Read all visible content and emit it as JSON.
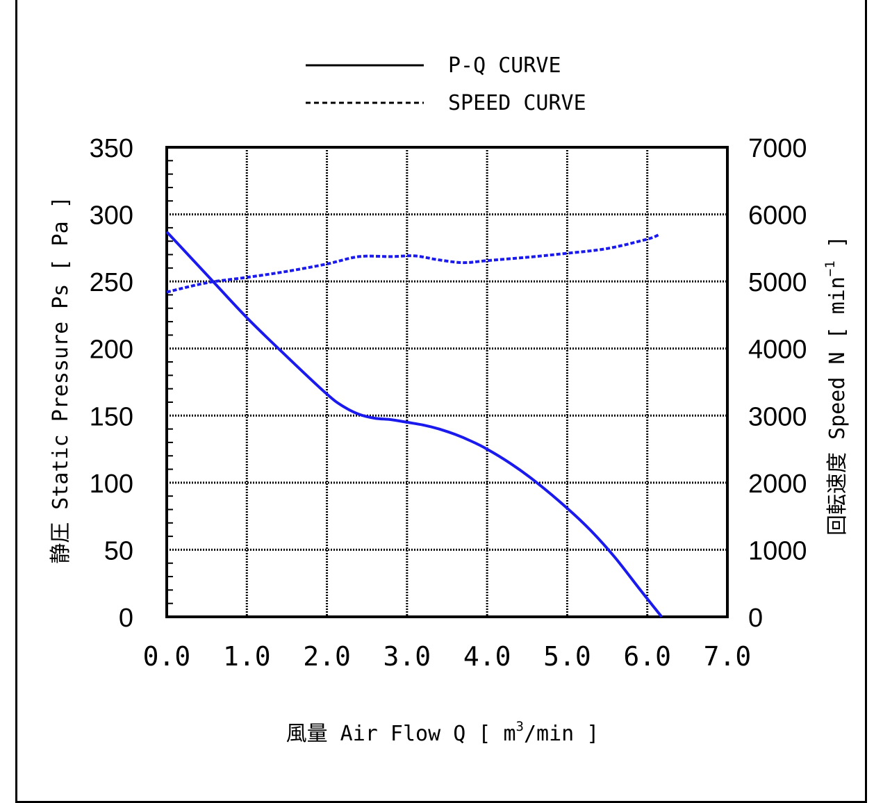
{
  "chart_data": {
    "type": "line",
    "title": "",
    "xlabel": "風量 Air Flow Q [ m³/min ]",
    "xlabel_parts": {
      "before": "風量 Air Flow Q [ m",
      "sup": "3",
      "after": "/min ]"
    },
    "ylabel": "静圧 Static Pressure Ps [ Pa ]",
    "y2label": "回転速度 Speed N [ min⁻¹ ]",
    "y2label_parts": {
      "before": "回転速度 Speed N [ min",
      "sup": "−1",
      "after": " ]"
    },
    "xlim": [
      0,
      7.0
    ],
    "ylim": [
      0,
      350
    ],
    "y2lim": [
      0,
      7000
    ],
    "x_ticks": [
      "0.0",
      "1.0",
      "2.0",
      "3.0",
      "4.0",
      "5.0",
      "6.0",
      "7.0"
    ],
    "y_ticks": [
      "0",
      "50",
      "100",
      "150",
      "200",
      "250",
      "300",
      "350"
    ],
    "y2_ticks": [
      "0",
      "1000",
      "2000",
      "3000",
      "4000",
      "5000",
      "6000",
      "7000"
    ],
    "grid": true,
    "legend_position": "top-center",
    "series": [
      {
        "name": "P-Q CURVE",
        "axis": "left",
        "style": "solid",
        "color": "#1a1aee",
        "x": [
          0.0,
          0.5,
          1.0,
          1.5,
          2.0,
          2.2,
          2.4,
          2.6,
          2.8,
          3.0,
          3.2,
          3.4,
          3.6,
          3.8,
          4.0,
          4.3,
          4.6,
          5.0,
          5.3,
          5.6,
          5.9,
          6.1,
          6.18
        ],
        "y": [
          287,
          255,
          223,
          194,
          166,
          157,
          151,
          148,
          147,
          145,
          143,
          140,
          136,
          131,
          125,
          114,
          101,
          81,
          64,
          44,
          21,
          6,
          0
        ]
      },
      {
        "name": "SPEED CURVE",
        "axis": "right",
        "style": "dashed",
        "color": "#1a1aee",
        "x": [
          0.0,
          0.5,
          1.0,
          1.5,
          2.0,
          2.4,
          2.8,
          3.1,
          3.4,
          3.7,
          4.0,
          4.5,
          5.0,
          5.5,
          6.0,
          6.15
        ],
        "y": [
          4840,
          4980,
          5060,
          5150,
          5260,
          5370,
          5370,
          5380,
          5320,
          5280,
          5310,
          5360,
          5420,
          5490,
          5630,
          5700
        ]
      }
    ]
  }
}
